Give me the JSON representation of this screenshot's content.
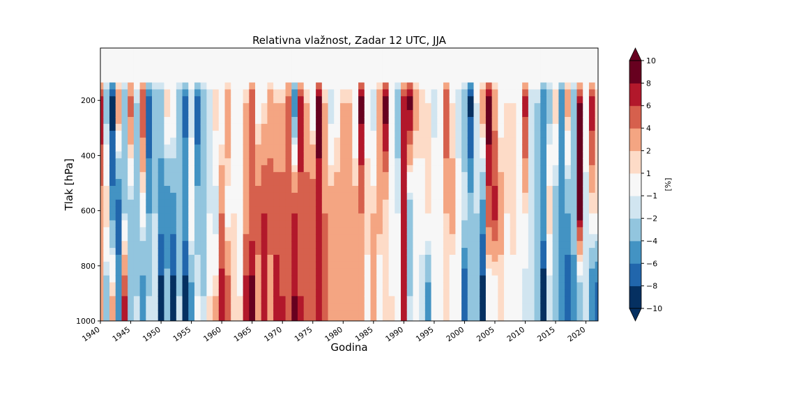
{
  "chart_data": {
    "type": "heatmap",
    "title": "Relativna vlažnost, Zadar 12 UTC, JJA",
    "xlabel": "Godina",
    "ylabel": "Tlak [hPa]",
    "xlim": [
      1940,
      2022
    ],
    "ylim": [
      1000,
      10
    ],
    "x_ticks": [
      "1940",
      "1945",
      "1950",
      "1955",
      "1960",
      "1965",
      "1970",
      "1975",
      "1980",
      "1985",
      "1990",
      "1995",
      "2000",
      "2005",
      "2010",
      "2015",
      "2020"
    ],
    "y_ticks": [
      "200",
      "400",
      "600",
      "800",
      "1000"
    ],
    "colorbar": {
      "label": "[%]",
      "levels": [
        -10,
        -8,
        -6,
        -4,
        -2,
        -1,
        1,
        2,
        4,
        6,
        8,
        10
      ],
      "level_labels": [
        "−10",
        "−8",
        "−6",
        "−4",
        "−2",
        "−1",
        "1",
        "2",
        "4",
        "6",
        "8",
        "10"
      ],
      "colors": [
        "#053061",
        "#2166ac",
        "#4393c3",
        "#92c5de",
        "#d1e5f0",
        "#f7f7f7",
        "#fddbc7",
        "#f4a582",
        "#d6604d",
        "#b2182b",
        "#67001f"
      ],
      "extend": "both"
    },
    "grid": false,
    "anomalies": {
      "years": [
        1940,
        1941,
        1942,
        1943,
        1944,
        1945,
        1946,
        1947,
        1948,
        1949,
        1950,
        1951,
        1952,
        1953,
        1954,
        1955,
        1956,
        1957,
        1958,
        1959,
        1960,
        1961,
        1962,
        1963,
        1964,
        1965,
        1966,
        1967,
        1968,
        1969,
        1970,
        1971,
        1972,
        1973,
        1974,
        1975,
        1976,
        1977,
        1978,
        1979,
        1980,
        1981,
        1982,
        1983,
        1984,
        1985,
        1986,
        1987,
        1988,
        1989,
        1990,
        1991,
        1992,
        1993,
        1994,
        1995,
        1996,
        1997,
        1998,
        1999,
        2000,
        2001,
        2002,
        2003,
        2004,
        2005,
        2006,
        2007,
        2008,
        2009,
        2010,
        2011,
        2012,
        2013,
        2014,
        2015,
        2016,
        2017,
        2018,
        2019,
        2020,
        2021,
        2022
      ],
      "upper_200hPa": [
        8,
        -3,
        -9,
        4,
        -4,
        5,
        -2,
        6,
        -8,
        -4,
        -3,
        2,
        1,
        -4,
        -7,
        -2,
        -8,
        -3,
        -2,
        2,
        -1,
        4,
        -1,
        -1,
        2,
        6,
        0,
        1,
        3,
        2,
        2,
        5,
        -6,
        8,
        2,
        -1,
        9,
        2,
        -2,
        0,
        2,
        2,
        -1,
        9,
        0,
        -2,
        3,
        10,
        1,
        -3,
        7,
        9,
        3,
        2,
        1,
        -2,
        -1,
        6,
        1,
        -2,
        -4,
        -9,
        -1,
        4,
        10,
        3,
        0,
        1,
        1,
        -1,
        7,
        -2,
        -2,
        -6,
        -3,
        2,
        -6,
        3,
        -3,
        8,
        1,
        8,
        2
      ],
      "mid_600hPa": [
        3,
        2,
        -5,
        -7,
        -2,
        -3,
        -4,
        0,
        -4,
        -2,
        -5,
        -6,
        -5,
        -3,
        -4,
        1,
        -3,
        -3,
        -1,
        -2,
        4,
        0,
        1,
        -1,
        3,
        4,
        5,
        6,
        5,
        5,
        5,
        5,
        6,
        5,
        5,
        6,
        7,
        4,
        3,
        3,
        2,
        4,
        3,
        4,
        2,
        2,
        3,
        1,
        0,
        -1,
        8,
        -3,
        -1,
        0,
        1,
        1,
        0,
        2,
        3,
        0,
        -1,
        -3,
        -2,
        -5,
        5,
        7,
        3,
        1,
        2,
        0,
        1,
        -1,
        -4,
        -4,
        2,
        -3,
        -4,
        -4,
        -3,
        9,
        -2,
        1,
        1
      ],
      "lower_900hPa": [
        2,
        -3,
        2,
        -5,
        6,
        -3,
        -2,
        -5,
        -2,
        -2,
        -9,
        -3,
        -9,
        -2,
        -9,
        -5,
        -1,
        -2,
        1,
        2,
        7,
        5,
        1,
        1,
        7,
        9,
        3,
        7,
        3,
        7,
        6,
        5,
        8,
        6,
        5,
        5,
        6,
        4,
        2,
        3,
        2,
        3,
        2,
        3,
        0,
        2,
        -1,
        1,
        1,
        -1,
        6,
        -2,
        -1,
        -2,
        -5,
        -1,
        0,
        1,
        -1,
        0,
        -8,
        -4,
        -3,
        -9,
        -1,
        -1,
        1,
        0,
        0,
        -1,
        -2,
        -2,
        -3,
        -10,
        -2,
        -4,
        -6,
        -8,
        -5,
        -4,
        -2,
        -6,
        -7
      ]
    }
  }
}
